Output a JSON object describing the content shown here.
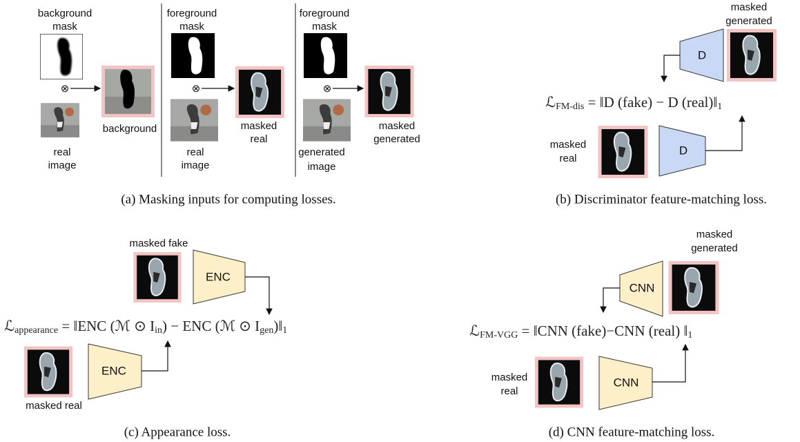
{
  "panel_a": {
    "background_mask_label": [
      "background",
      "mask"
    ],
    "real_image_label_1": [
      "real",
      "image"
    ],
    "background_label": "background",
    "foreground_mask_label_1": [
      "foreground",
      "mask"
    ],
    "real_image_label_2": [
      "real",
      "image"
    ],
    "masked_real_label": [
      "masked",
      "real"
    ],
    "foreground_mask_label_2": [
      "foreground",
      "mask"
    ],
    "generated_image_label": [
      "generated",
      "image"
    ],
    "masked_generated_label": [
      "masked",
      "generated"
    ],
    "operator": "⊗",
    "caption": "(a) Masking inputs for computing losses."
  },
  "panel_b": {
    "masked_generated_label": [
      "masked",
      "generated"
    ],
    "masked_real_label": [
      "masked",
      "real"
    ],
    "block": "D",
    "formula": [
      "ℒ",
      "FM-dis",
      " = ‖D (fake) − D (real)‖",
      "1"
    ],
    "caption": "(b) Discriminator feature-matching loss."
  },
  "panel_c": {
    "masked_fake_label": "masked fake",
    "masked_real_label": "masked real",
    "block": "ENC",
    "formula": [
      "ℒ",
      "appearance",
      " = ‖ENC (ℳ ⊙ I",
      "in",
      ") − ENC (ℳ ⊙ I",
      "gen",
      ")‖",
      "1"
    ],
    "caption": "(c) Appearance loss."
  },
  "panel_d": {
    "masked_generated_label": [
      "masked",
      "generated"
    ],
    "masked_real_label": [
      "masked",
      "real"
    ],
    "block": "CNN",
    "formula": [
      "ℒ",
      "FM-VGG",
      " = ‖CNN (fake)−CNN (real) ‖",
      "1"
    ],
    "caption": "(d) CNN feature-matching loss."
  }
}
